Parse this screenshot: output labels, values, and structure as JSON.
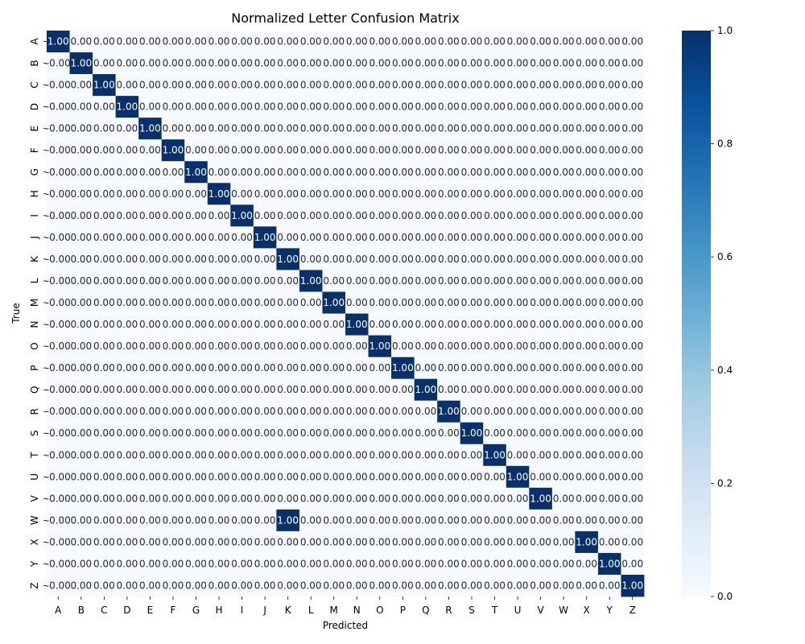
{
  "chart_data": {
    "type": "heatmap",
    "title": "Normalized Letter Confusion Matrix",
    "xlabel": "Predicted",
    "ylabel": "True",
    "x_categories": [
      "A",
      "B",
      "C",
      "D",
      "E",
      "F",
      "G",
      "H",
      "I",
      "J",
      "K",
      "L",
      "M",
      "N",
      "O",
      "P",
      "Q",
      "R",
      "S",
      "T",
      "U",
      "V",
      "W",
      "X",
      "Y",
      "Z"
    ],
    "y_categories": [
      "A",
      "B",
      "C",
      "D",
      "E",
      "F",
      "G",
      "H",
      "I",
      "J",
      "K",
      "L",
      "M",
      "N",
      "O",
      "P",
      "Q",
      "R",
      "S",
      "T",
      "U",
      "V",
      "W",
      "X",
      "Y",
      "Z"
    ],
    "values": [
      [
        1,
        0,
        0,
        0,
        0,
        0,
        0,
        0,
        0,
        0,
        0,
        0,
        0,
        0,
        0,
        0,
        0,
        0,
        0,
        0,
        0,
        0,
        0,
        0,
        0,
        0
      ],
      [
        0,
        1,
        0,
        0,
        0,
        0,
        0,
        0,
        0,
        0,
        0,
        0,
        0,
        0,
        0,
        0,
        0,
        0,
        0,
        0,
        0,
        0,
        0,
        0,
        0,
        0
      ],
      [
        0,
        0,
        1,
        0,
        0,
        0,
        0,
        0,
        0,
        0,
        0,
        0,
        0,
        0,
        0,
        0,
        0,
        0,
        0,
        0,
        0,
        0,
        0,
        0,
        0,
        0
      ],
      [
        0,
        0,
        0,
        1,
        0,
        0,
        0,
        0,
        0,
        0,
        0,
        0,
        0,
        0,
        0,
        0,
        0,
        0,
        0,
        0,
        0,
        0,
        0,
        0,
        0,
        0
      ],
      [
        0,
        0,
        0,
        0,
        1,
        0,
        0,
        0,
        0,
        0,
        0,
        0,
        0,
        0,
        0,
        0,
        0,
        0,
        0,
        0,
        0,
        0,
        0,
        0,
        0,
        0
      ],
      [
        0,
        0,
        0,
        0,
        0,
        1,
        0,
        0,
        0,
        0,
        0,
        0,
        0,
        0,
        0,
        0,
        0,
        0,
        0,
        0,
        0,
        0,
        0,
        0,
        0,
        0
      ],
      [
        0,
        0,
        0,
        0,
        0,
        0,
        1,
        0,
        0,
        0,
        0,
        0,
        0,
        0,
        0,
        0,
        0,
        0,
        0,
        0,
        0,
        0,
        0,
        0,
        0,
        0
      ],
      [
        0,
        0,
        0,
        0,
        0,
        0,
        0,
        1,
        0,
        0,
        0,
        0,
        0,
        0,
        0,
        0,
        0,
        0,
        0,
        0,
        0,
        0,
        0,
        0,
        0,
        0
      ],
      [
        0,
        0,
        0,
        0,
        0,
        0,
        0,
        0,
        1,
        0,
        0,
        0,
        0,
        0,
        0,
        0,
        0,
        0,
        0,
        0,
        0,
        0,
        0,
        0,
        0,
        0
      ],
      [
        0,
        0,
        0,
        0,
        0,
        0,
        0,
        0,
        0,
        1,
        0,
        0,
        0,
        0,
        0,
        0,
        0,
        0,
        0,
        0,
        0,
        0,
        0,
        0,
        0,
        0
      ],
      [
        0,
        0,
        0,
        0,
        0,
        0,
        0,
        0,
        0,
        0,
        1,
        0,
        0,
        0,
        0,
        0,
        0,
        0,
        0,
        0,
        0,
        0,
        0,
        0,
        0,
        0
      ],
      [
        0,
        0,
        0,
        0,
        0,
        0,
        0,
        0,
        0,
        0,
        0,
        1,
        0,
        0,
        0,
        0,
        0,
        0,
        0,
        0,
        0,
        0,
        0,
        0,
        0,
        0
      ],
      [
        0,
        0,
        0,
        0,
        0,
        0,
        0,
        0,
        0,
        0,
        0,
        0,
        1,
        0,
        0,
        0,
        0,
        0,
        0,
        0,
        0,
        0,
        0,
        0,
        0,
        0
      ],
      [
        0,
        0,
        0,
        0,
        0,
        0,
        0,
        0,
        0,
        0,
        0,
        0,
        0,
        1,
        0,
        0,
        0,
        0,
        0,
        0,
        0,
        0,
        0,
        0,
        0,
        0
      ],
      [
        0,
        0,
        0,
        0,
        0,
        0,
        0,
        0,
        0,
        0,
        0,
        0,
        0,
        0,
        1,
        0,
        0,
        0,
        0,
        0,
        0,
        0,
        0,
        0,
        0,
        0
      ],
      [
        0,
        0,
        0,
        0,
        0,
        0,
        0,
        0,
        0,
        0,
        0,
        0,
        0,
        0,
        0,
        1,
        0,
        0,
        0,
        0,
        0,
        0,
        0,
        0,
        0,
        0
      ],
      [
        0,
        0,
        0,
        0,
        0,
        0,
        0,
        0,
        0,
        0,
        0,
        0,
        0,
        0,
        0,
        0,
        1,
        0,
        0,
        0,
        0,
        0,
        0,
        0,
        0,
        0
      ],
      [
        0,
        0,
        0,
        0,
        0,
        0,
        0,
        0,
        0,
        0,
        0,
        0,
        0,
        0,
        0,
        0,
        0,
        1,
        0,
        0,
        0,
        0,
        0,
        0,
        0,
        0
      ],
      [
        0,
        0,
        0,
        0,
        0,
        0,
        0,
        0,
        0,
        0,
        0,
        0,
        0,
        0,
        0,
        0,
        0,
        0,
        1,
        0,
        0,
        0,
        0,
        0,
        0,
        0
      ],
      [
        0,
        0,
        0,
        0,
        0,
        0,
        0,
        0,
        0,
        0,
        0,
        0,
        0,
        0,
        0,
        0,
        0,
        0,
        0,
        1,
        0,
        0,
        0,
        0,
        0,
        0
      ],
      [
        0,
        0,
        0,
        0,
        0,
        0,
        0,
        0,
        0,
        0,
        0,
        0,
        0,
        0,
        0,
        0,
        0,
        0,
        0,
        0,
        1,
        0,
        0,
        0,
        0,
        0
      ],
      [
        0,
        0,
        0,
        0,
        0,
        0,
        0,
        0,
        0,
        0,
        0,
        0,
        0,
        0,
        0,
        0,
        0,
        0,
        0,
        0,
        0,
        1,
        0,
        0,
        0,
        0
      ],
      [
        0,
        0,
        0,
        0,
        0,
        0,
        0,
        0,
        0,
        0,
        1,
        0,
        0,
        0,
        0,
        0,
        0,
        0,
        0,
        0,
        0,
        0,
        0,
        0,
        0,
        0
      ],
      [
        0,
        0,
        0,
        0,
        0,
        0,
        0,
        0,
        0,
        0,
        0,
        0,
        0,
        0,
        0,
        0,
        0,
        0,
        0,
        0,
        0,
        0,
        0,
        1,
        0,
        0
      ],
      [
        0,
        0,
        0,
        0,
        0,
        0,
        0,
        0,
        0,
        0,
        0,
        0,
        0,
        0,
        0,
        0,
        0,
        0,
        0,
        0,
        0,
        0,
        0,
        0,
        1,
        0
      ],
      [
        0,
        0,
        0,
        0,
        0,
        0,
        0,
        0,
        0,
        0,
        0,
        0,
        0,
        0,
        0,
        0,
        0,
        0,
        0,
        0,
        0,
        0,
        0,
        0,
        0,
        1
      ]
    ],
    "value_format": "0.00",
    "negative_zero_columns": [
      0
    ],
    "vmin": 0,
    "vmax": 1,
    "colormap": "Blues",
    "colormap_stops": [
      "#f7fbff",
      "#deebf7",
      "#c6dbef",
      "#9ecae1",
      "#6baed6",
      "#4292c6",
      "#2171b5",
      "#08519c",
      "#08306b"
    ],
    "colorbar": {
      "ticks": [
        "0.0",
        "0.2",
        "0.4",
        "0.6",
        "0.8",
        "1.0"
      ],
      "range": [
        0,
        1
      ]
    },
    "grid": false,
    "legend": "colorbar-right"
  }
}
